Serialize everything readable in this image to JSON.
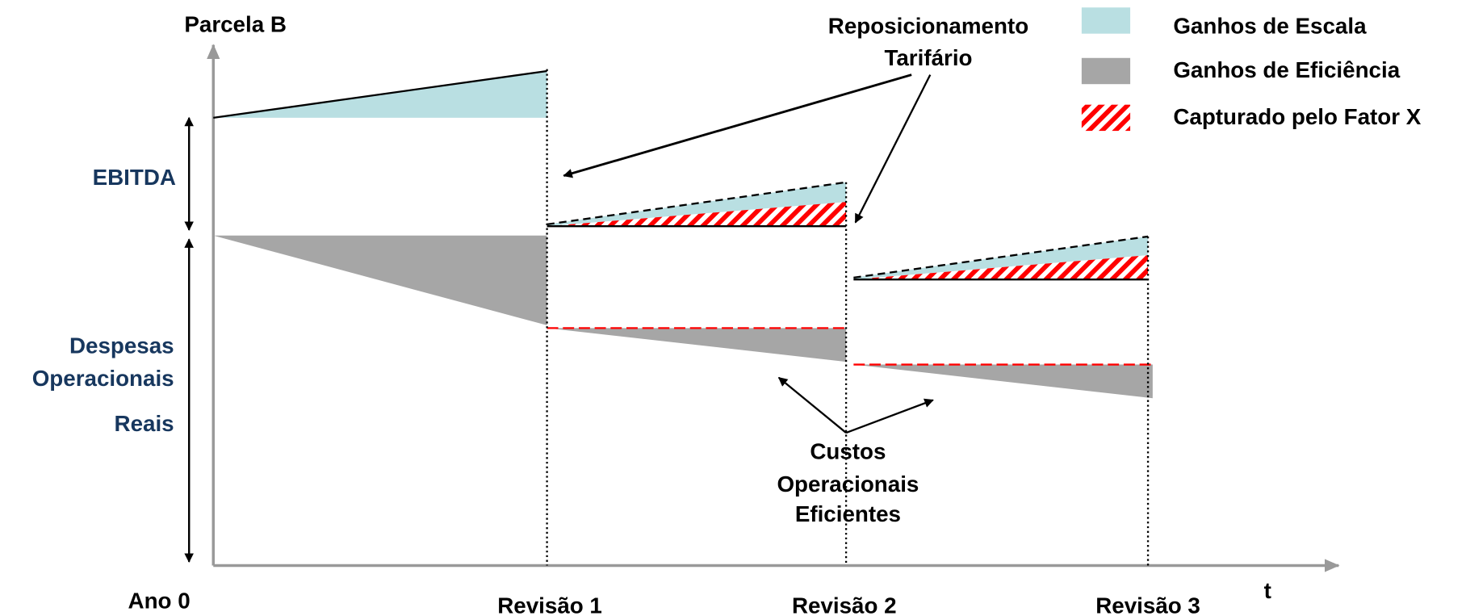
{
  "y_axis_label": "Parcela B",
  "x_axis_label": "t",
  "left_labels": {
    "ebitda": "EBITDA",
    "opex": [
      "Despesas",
      "Operacionais",
      "Reais"
    ]
  },
  "annotations": {
    "reposicionamento": [
      "Reposicionamento",
      "Tarifário"
    ],
    "custos": [
      "Custos",
      "Operacionais",
      "Eficientes"
    ]
  },
  "x_labels": [
    "Ano 0",
    "Revisão 1",
    "Revisão 2",
    "Revisão 3"
  ],
  "legend": [
    "Ganhos de Escala",
    "Ganhos de Eficiência",
    "Capturado pelo Fator X"
  ]
}
